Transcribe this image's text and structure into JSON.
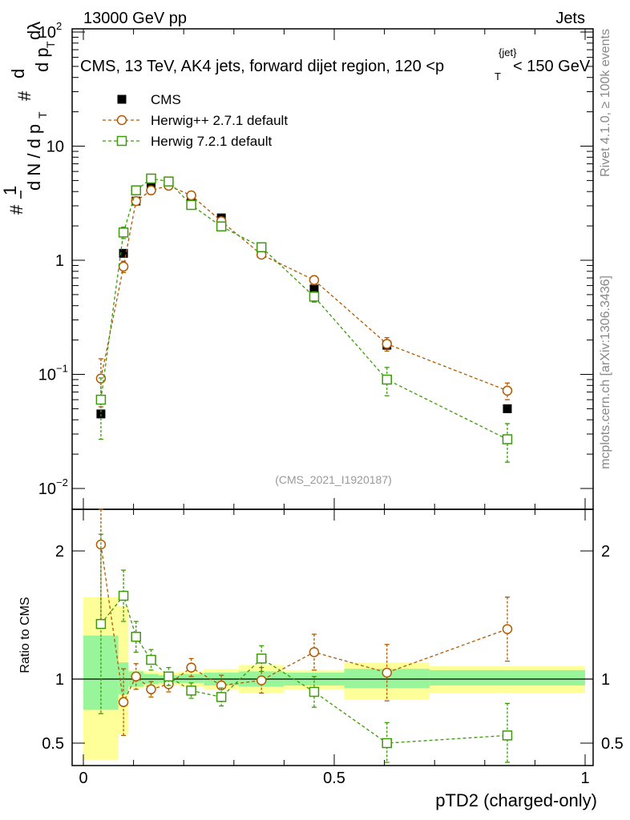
{
  "header": {
    "left": "13000 GeV pp",
    "right": "Jets"
  },
  "side_labels": {
    "rivet": "Rivet 4.1.0, ≥ 100k events",
    "mcplots": "mcplots.cern.ch [arXiv:1306.3436]"
  },
  "chart_data": {
    "type": "line",
    "title": "CMS, 13 TeV, AK4 jets, forward dijet region, 120 <p",
    "title_sub": "T",
    "title_sup": "{jet}",
    "title_tail": "< 150 GeV",
    "analysis_id": "(CMS_2021_I1920187)",
    "xlabel": "pTD2 (charged-only)",
    "ylabel_main": "1/N dN/dp_T dλ  (d²N / dp_T dλ)",
    "ylabel_ratio": "Ratio to CMS",
    "xlim": [
      0,
      1
    ],
    "ylim_main": [
      0.01,
      100
    ],
    "ylim_ratio": [
      0.35,
      2.3
    ],
    "x_ticks": [
      {
        "v": 0,
        "label": "0"
      },
      {
        "v": 0.5,
        "label": "0.5"
      },
      {
        "v": 1,
        "label": "1"
      }
    ],
    "main_y_ticks": [
      {
        "v": 0.01,
        "label": "10",
        "sup": "−2"
      },
      {
        "v": 0.1,
        "label": "10",
        "sup": "−1"
      },
      {
        "v": 1,
        "label": "1",
        "sup": ""
      },
      {
        "v": 10,
        "label": "10",
        "sup": ""
      },
      {
        "v": 100,
        "label": "10",
        "sup": "2"
      }
    ],
    "ratio_y_ticks": [
      {
        "v": 0.5,
        "label": "0.5"
      },
      {
        "v": 1,
        "label": "1"
      },
      {
        "v": 2,
        "label": "2"
      }
    ],
    "legend": {
      "position": "top-left"
    },
    "series": [
      {
        "name": "CMS",
        "style": "data",
        "color": "#000000",
        "x": [
          0.035,
          0.08,
          0.105,
          0.135,
          0.17,
          0.215,
          0.275,
          0.355,
          0.46,
          0.605,
          0.845
        ],
        "y": [
          0.045,
          1.15,
          3.3,
          4.6,
          4.8,
          3.5,
          2.35,
          1.15,
          0.56,
          0.18,
          0.05
        ]
      },
      {
        "name": "Herwig++ 2.7.1 default",
        "style": "circle",
        "color": "#b35900",
        "x": [
          0.035,
          0.08,
          0.105,
          0.135,
          0.17,
          0.215,
          0.275,
          0.355,
          0.46,
          0.605,
          0.845
        ],
        "y": [
          0.092,
          0.88,
          3.3,
          4.1,
          4.5,
          3.7,
          2.2,
          1.12,
          0.67,
          0.185,
          0.072
        ],
        "err_lo": [
          0.04,
          0.1,
          0.25,
          0.3,
          0.3,
          0.25,
          0.15,
          0.08,
          0.06,
          0.025,
          0.012
        ],
        "err_hi": [
          0.045,
          0.1,
          0.25,
          0.3,
          0.3,
          0.25,
          0.15,
          0.08,
          0.06,
          0.025,
          0.012
        ],
        "ratio": [
          2.05,
          0.82,
          1.02,
          0.92,
          0.96,
          1.09,
          0.95,
          0.99,
          1.21,
          1.05,
          1.39
        ],
        "ratio_err_lo": [
          0.6,
          0.26,
          0.1,
          0.06,
          0.06,
          0.07,
          0.08,
          0.1,
          0.14,
          0.22,
          0.25
        ],
        "ratio_err_hi": [
          0.6,
          0.26,
          0.1,
          0.06,
          0.06,
          0.07,
          0.08,
          0.1,
          0.14,
          0.22,
          0.25
        ]
      },
      {
        "name": "Herwig 7.2.1 default",
        "style": "square",
        "color": "#3c9a0a",
        "x": [
          0.035,
          0.08,
          0.105,
          0.135,
          0.17,
          0.215,
          0.275,
          0.355,
          0.46,
          0.605,
          0.845
        ],
        "y": [
          0.06,
          1.75,
          4.1,
          5.2,
          4.9,
          3.05,
          1.98,
          1.3,
          0.48,
          0.09,
          0.027
        ],
        "err_lo": [
          0.033,
          0.2,
          0.3,
          0.35,
          0.3,
          0.2,
          0.13,
          0.1,
          0.05,
          0.025,
          0.01
        ],
        "err_hi": [
          0.033,
          0.2,
          0.3,
          0.35,
          0.3,
          0.2,
          0.13,
          0.1,
          0.05,
          0.025,
          0.01
        ],
        "ratio": [
          1.43,
          1.65,
          1.33,
          1.15,
          1.02,
          0.91,
          0.86,
          1.16,
          0.9,
          0.5,
          0.56
        ],
        "ratio_err_lo": [
          0.7,
          0.2,
          0.12,
          0.08,
          0.07,
          0.06,
          0.07,
          0.1,
          0.12,
          0.16,
          0.25
        ],
        "ratio_err_hi": [
          0.7,
          0.2,
          0.12,
          0.08,
          0.07,
          0.06,
          0.07,
          0.1,
          0.12,
          0.16,
          0.25
        ]
      }
    ],
    "uncertainty_bands": [
      {
        "x0": 0.0,
        "x1": 0.07,
        "g_lo": 0.76,
        "g_hi": 1.34,
        "y_lo": 0.37,
        "y_hi": 1.64
      },
      {
        "x0": 0.07,
        "x1": 0.09,
        "g_lo": 0.88,
        "g_hi": 1.13,
        "y_lo": 0.57,
        "y_hi": 1.57
      },
      {
        "x0": 0.09,
        "x1": 0.12,
        "g_lo": 0.94,
        "g_hi": 1.06,
        "y_lo": 0.93,
        "y_hi": 1.07
      },
      {
        "x0": 0.12,
        "x1": 0.15,
        "g_lo": 0.96,
        "g_hi": 1.04,
        "y_lo": 0.94,
        "y_hi": 1.06
      },
      {
        "x0": 0.15,
        "x1": 0.19,
        "g_lo": 0.97,
        "g_hi": 1.03,
        "y_lo": 0.95,
        "y_hi": 1.05
      },
      {
        "x0": 0.19,
        "x1": 0.24,
        "g_lo": 0.97,
        "g_hi": 1.04,
        "y_lo": 0.94,
        "y_hi": 1.06
      },
      {
        "x0": 0.24,
        "x1": 0.31,
        "g_lo": 0.95,
        "g_hi": 1.05,
        "y_lo": 0.92,
        "y_hi": 1.08
      },
      {
        "x0": 0.31,
        "x1": 0.4,
        "g_lo": 0.94,
        "g_hi": 1.06,
        "y_lo": 0.89,
        "y_hi": 1.11
      },
      {
        "x0": 0.4,
        "x1": 0.52,
        "g_lo": 0.95,
        "g_hi": 1.05,
        "y_lo": 0.92,
        "y_hi": 1.07
      },
      {
        "x0": 0.52,
        "x1": 0.69,
        "g_lo": 0.93,
        "g_hi": 1.08,
        "y_lo": 0.84,
        "y_hi": 1.13
      },
      {
        "x0": 0.69,
        "x1": 1.0,
        "g_lo": 0.95,
        "g_hi": 1.07,
        "y_lo": 0.89,
        "y_hi": 1.1
      }
    ],
    "band_colors": {
      "inner": "#99f599",
      "outer": "#ffff99"
    }
  }
}
